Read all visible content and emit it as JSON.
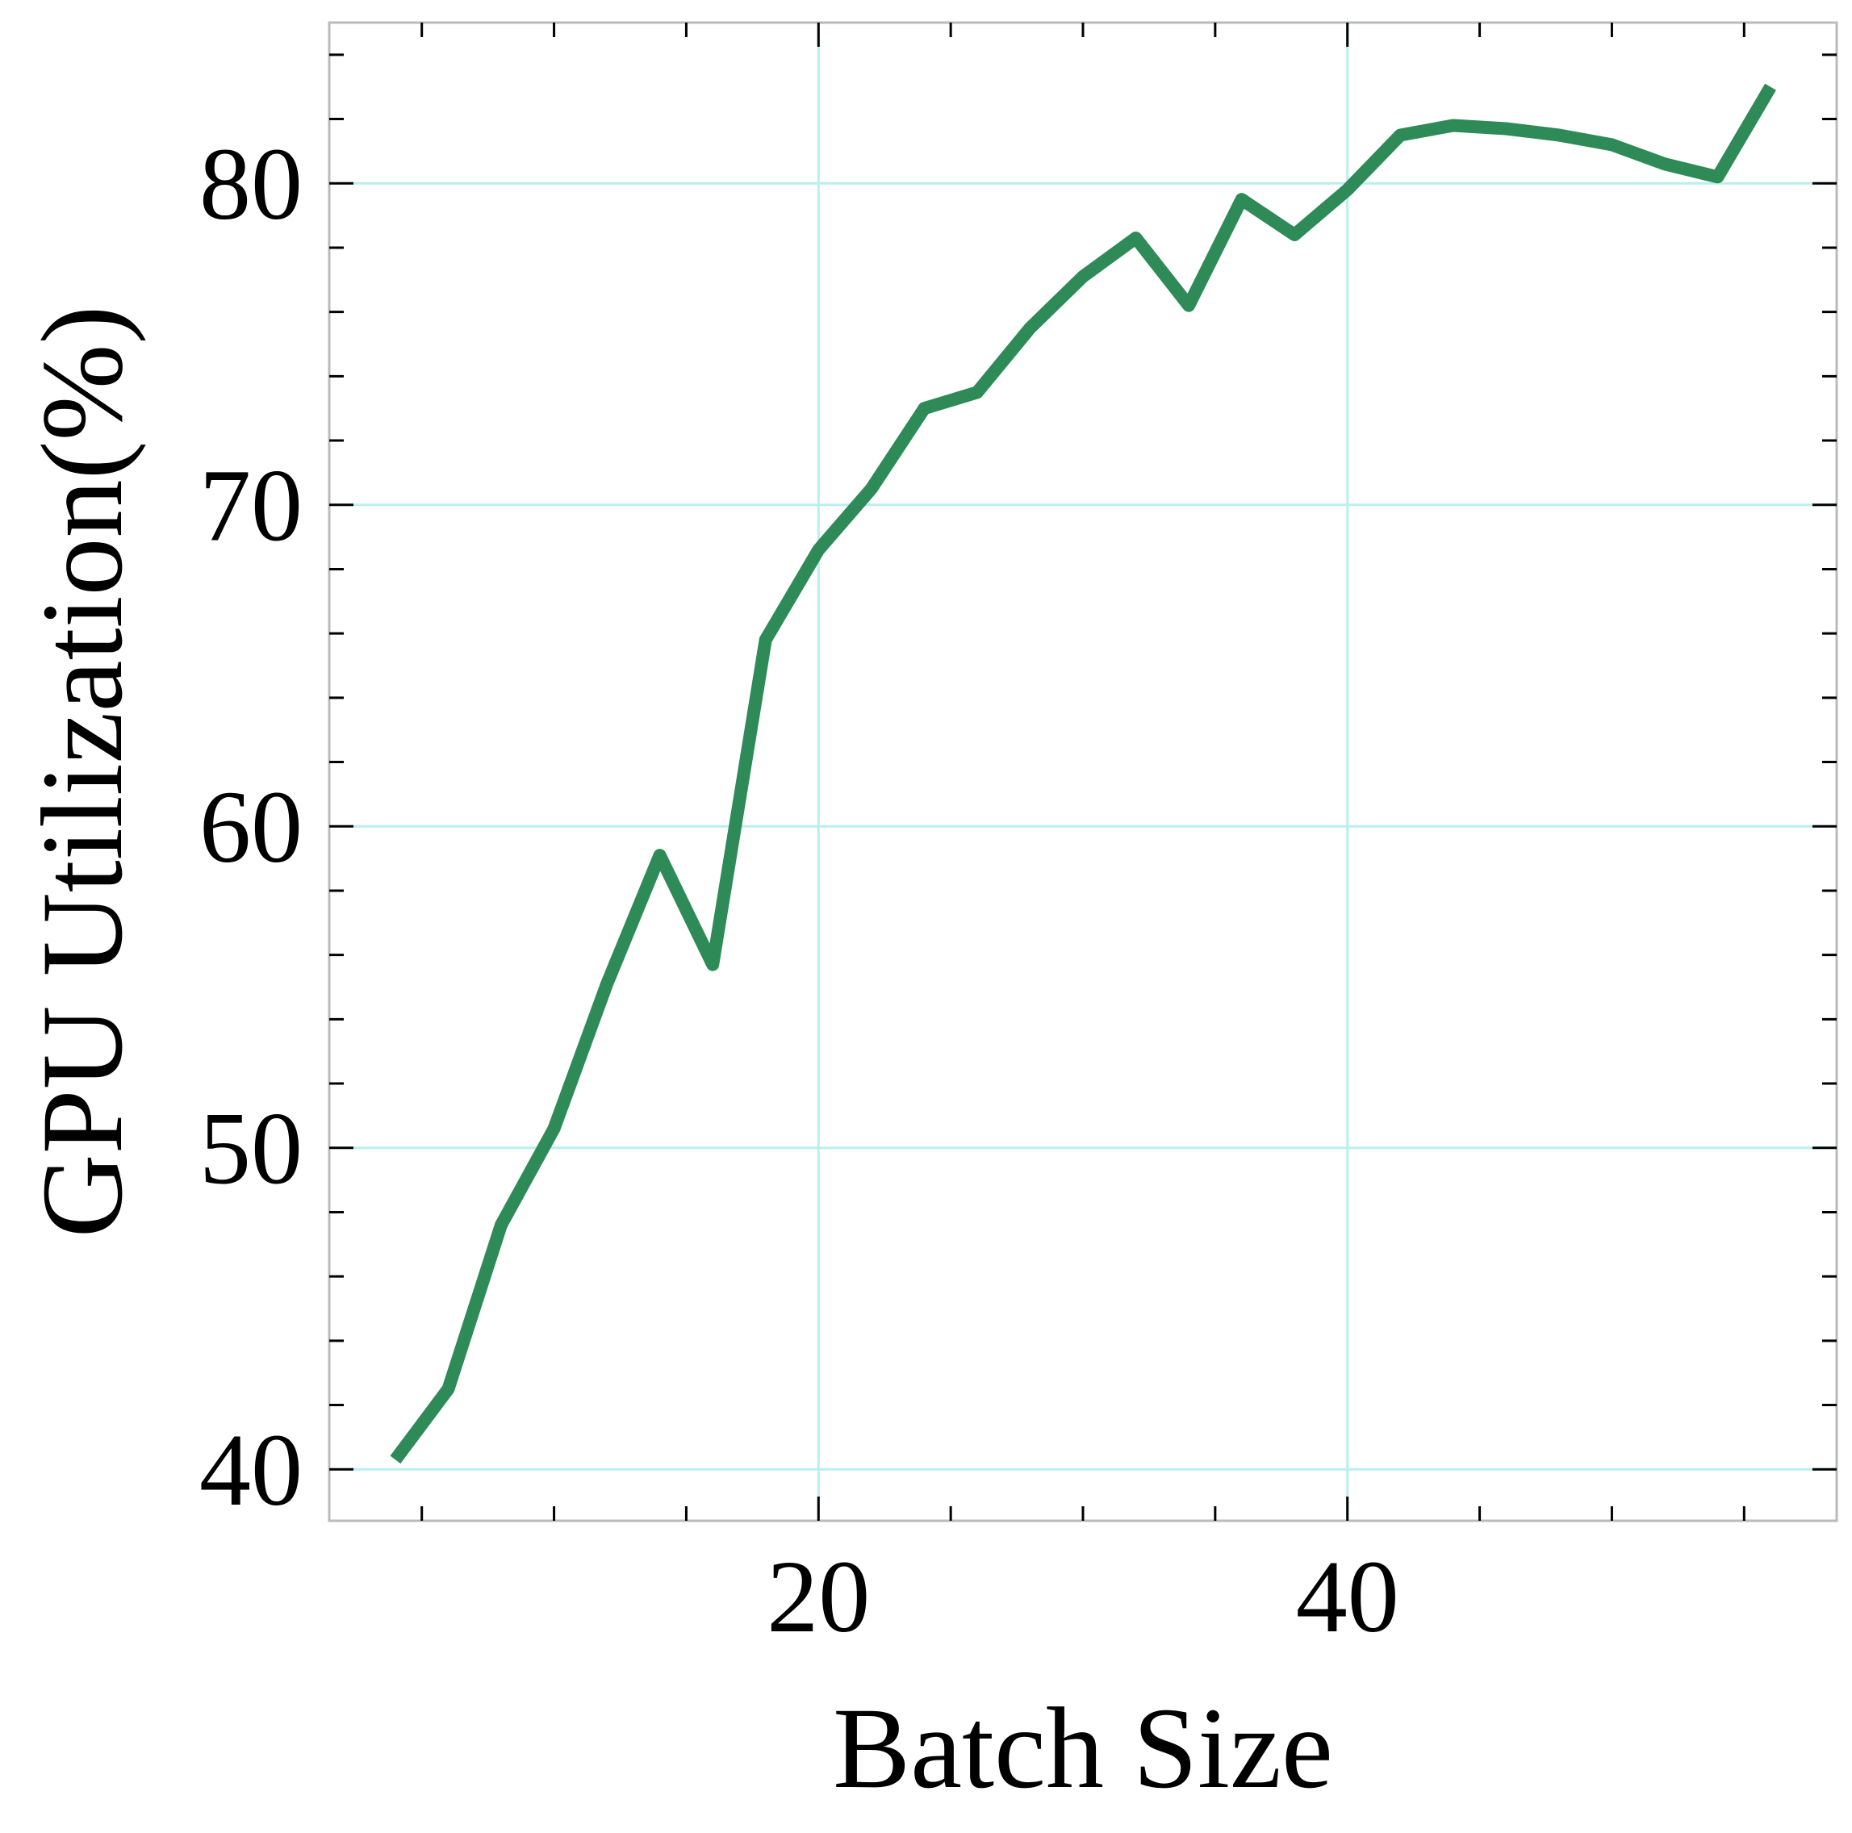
{
  "chart_data": {
    "type": "line",
    "title": "",
    "xlabel": "Batch Size",
    "ylabel": "GPU Utilization(%)",
    "xlim": [
      1.5,
      58.5
    ],
    "ylim": [
      38.4,
      85.0
    ],
    "x_ticks": [
      20,
      40
    ],
    "x_tick_labels": [
      "20",
      "40"
    ],
    "x_minor_step": 5,
    "y_ticks": [
      40,
      50,
      60,
      70,
      80
    ],
    "y_tick_labels": [
      "40",
      "50",
      "60",
      "70",
      "80"
    ],
    "y_minor_step": 2,
    "grid": true,
    "grid_color": "#b9efef",
    "frame_color": "#bbbbbb",
    "series": [
      {
        "color": "#2e8b57",
        "x": [
          4,
          6,
          8,
          10,
          12,
          14,
          16,
          18,
          20,
          22,
          24,
          26,
          28,
          30,
          32,
          34,
          36,
          38,
          40,
          42,
          44,
          46,
          48,
          50,
          52,
          54,
          56
        ],
        "y": [
          40.3,
          42.5,
          47.6,
          50.6,
          55.1,
          59.1,
          55.7,
          65.8,
          68.6,
          70.5,
          73.0,
          73.5,
          75.5,
          77.1,
          78.3,
          76.2,
          79.5,
          78.4,
          79.8,
          81.5,
          81.8,
          81.7,
          81.5,
          81.2,
          80.6,
          80.2,
          83.0
        ]
      }
    ]
  }
}
